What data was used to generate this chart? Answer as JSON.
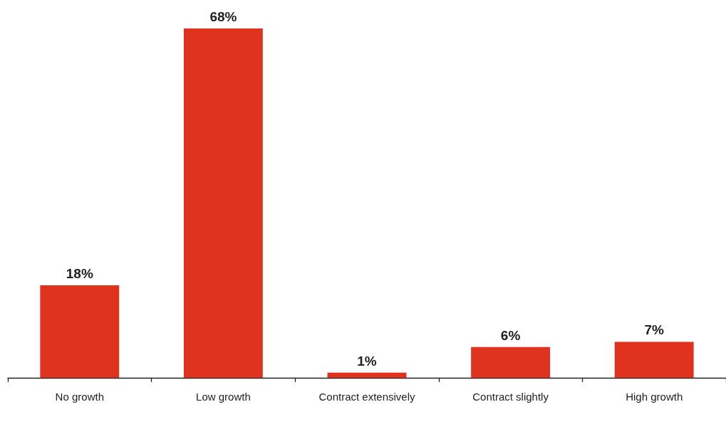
{
  "chart_data": {
    "type": "bar",
    "categories": [
      "No growth",
      "Low growth",
      "Contract extensively",
      "Contract slightly",
      "High growth"
    ],
    "values": [
      18,
      68,
      1,
      6,
      7
    ],
    "color": "#df321f",
    "value_labels": [
      "18%",
      "68%",
      "1%",
      "6%",
      "7%"
    ]
  }
}
